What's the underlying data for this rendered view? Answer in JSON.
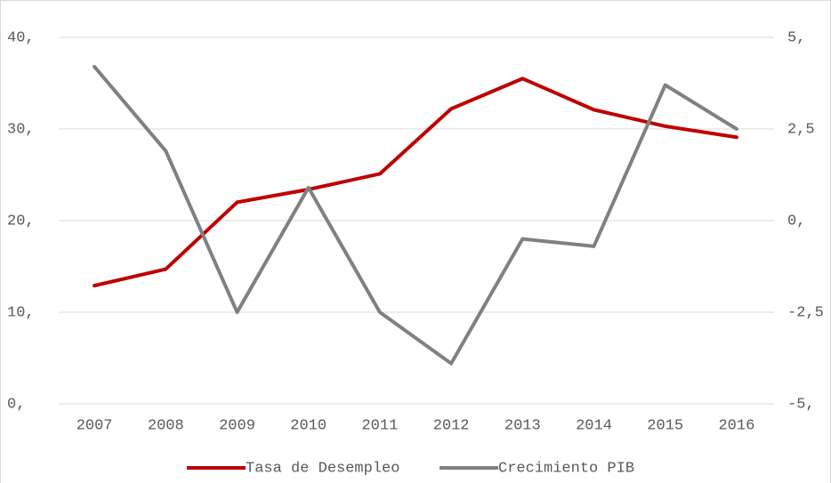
{
  "chart_data": {
    "type": "line",
    "categories": [
      "2007",
      "2008",
      "2009",
      "2010",
      "2011",
      "2012",
      "2013",
      "2014",
      "2015",
      "2016"
    ],
    "series": [
      {
        "name": "Tasa de Desempleo",
        "color": "#c00000",
        "values": [
          12.9,
          14.7,
          22.0,
          23.4,
          25.1,
          32.2,
          35.5,
          32.1,
          30.3,
          29.1
        ]
      },
      {
        "name": "Crecimiento PIB",
        "color": "#808080",
        "axis": "y2",
        "values": [
          4.2,
          1.9,
          -2.5,
          0.9,
          -2.5,
          -3.9,
          -0.5,
          -0.7,
          3.7,
          2.5
        ]
      }
    ],
    "ylim": [
      0,
      40
    ],
    "yticks": [
      {
        "value": 0,
        "label": "0,"
      },
      {
        "value": 10,
        "label": "10,"
      },
      {
        "value": 20,
        "label": "20,"
      },
      {
        "value": 30,
        "label": "30,"
      },
      {
        "value": 40,
        "label": "40,"
      }
    ],
    "y2lim": [
      -5,
      5
    ],
    "y2ticks": [
      {
        "value": -5,
        "label": "-5,"
      },
      {
        "value": -2.5,
        "label": "-2,5"
      },
      {
        "value": 0,
        "label": "0,"
      },
      {
        "value": 2.5,
        "label": "2,5"
      },
      {
        "value": 5,
        "label": "5,"
      }
    ],
    "grid": true,
    "legend": "bottom"
  }
}
